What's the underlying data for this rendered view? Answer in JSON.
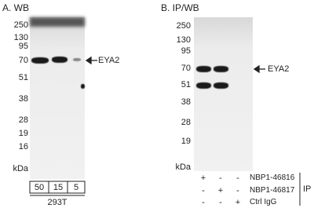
{
  "panel_a": {
    "title": "A. WB",
    "markers": [
      "250",
      "130",
      "95",
      "70",
      "51",
      "38",
      "28",
      "19",
      "16"
    ],
    "unit": "kDa",
    "target": "EYA2",
    "lanes": [
      "50",
      "15",
      "5"
    ],
    "cell_line": "293T"
  },
  "panel_b": {
    "title": "B. IP/WB",
    "markers": [
      "250",
      "130",
      "95",
      "70",
      "51",
      "38",
      "28",
      "19"
    ],
    "unit": "kDa",
    "target": "EYA2",
    "rows": [
      {
        "signs": [
          "+",
          "-",
          "-"
        ],
        "label": "NBP1-46816"
      },
      {
        "signs": [
          "-",
          "+",
          "-"
        ],
        "label": "NBP1-46817"
      },
      {
        "signs": [
          "-",
          "-",
          "+"
        ],
        "label": "Ctrl IgG"
      }
    ],
    "group_label": "IP"
  }
}
